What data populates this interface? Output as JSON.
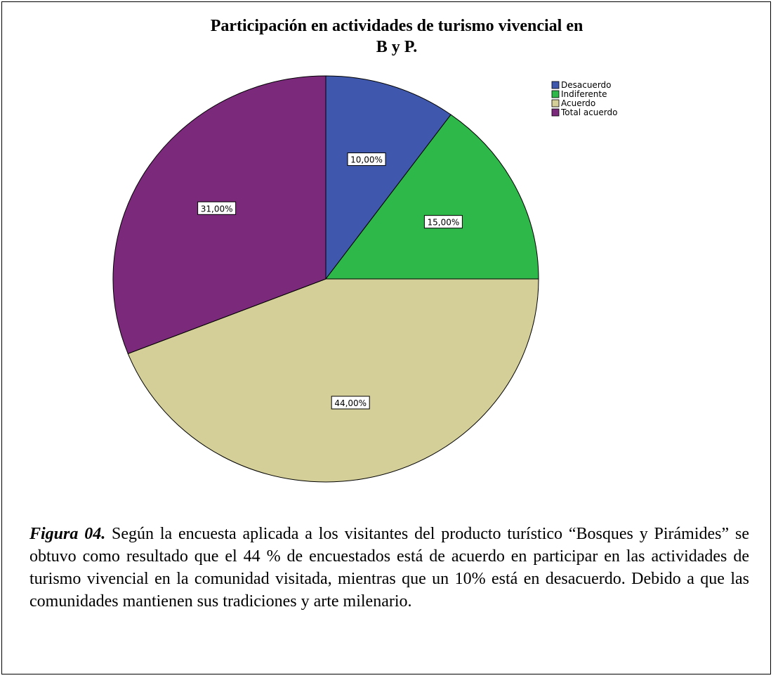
{
  "chart_data": {
    "type": "pie",
    "title": "Participación en actividades de turismo vivencial en B y P.",
    "categories": [
      "Desacuerdo",
      "Indiferente",
      "Acuerdo",
      "Total acuerdo"
    ],
    "values": [
      10,
      15,
      44,
      31
    ],
    "value_labels": [
      "10,00%",
      "15,00%",
      "44,00%",
      "31,00%"
    ],
    "colors": [
      "#3f58ad",
      "#2eb84a",
      "#d4cf98",
      "#7b2a7b"
    ],
    "legend": "top-right"
  },
  "caption": {
    "label": "Figura 04.",
    "text": "Según la encuesta aplicada a los visitantes del producto turístico “Bosques y Pirámides” se obtuvo como resultado que el 44 % de encuestados está de acuerdo en participar en las actividades de turismo vivencial en la comunidad visitada, mientras que un 10% está en desacuerdo. Debido a que las comunidades mantienen sus tradiciones y arte milenario."
  }
}
